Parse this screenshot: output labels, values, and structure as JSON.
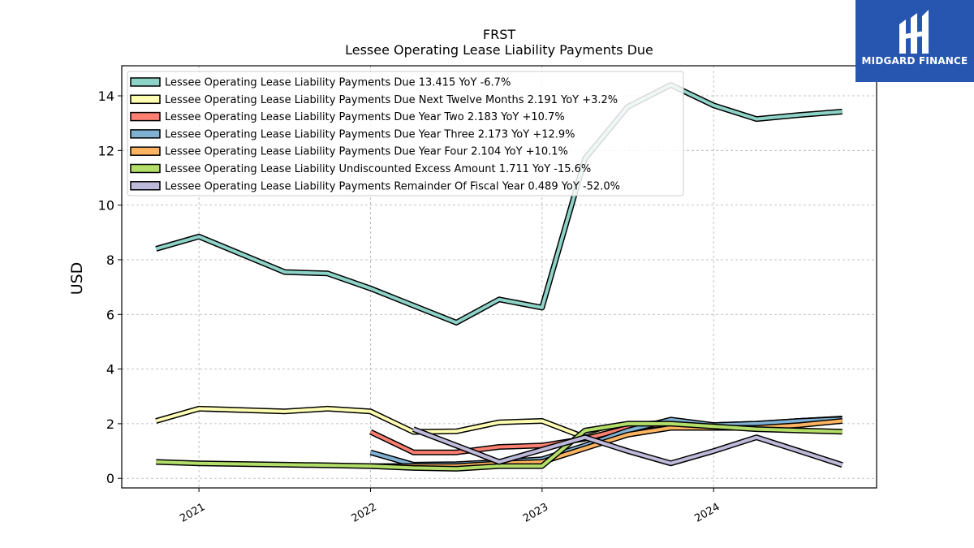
{
  "logo": {
    "text": "MIDGARD FINANCE",
    "color": "#2756b0"
  },
  "chart_data": {
    "type": "line",
    "title": "FRST",
    "subtitle": "Lessee Operating Lease Liability Payments Due",
    "xlabel": "",
    "ylabel": "USD",
    "ylim": [
      -0.35,
      15.1
    ],
    "xlim": [
      2020.55,
      2024.95
    ],
    "yticks": [
      0,
      2,
      4,
      6,
      8,
      10,
      12,
      14
    ],
    "xticks": [
      2021,
      2022,
      2023,
      2024
    ],
    "xtick_labels": [
      "2021",
      "2022",
      "2023",
      "2024"
    ],
    "grid": true,
    "legend_position": "top-left",
    "series": [
      {
        "name": "Lessee Operating Lease Liability Payments Due",
        "legend": "Lessee Operating Lease Liability Payments Due  13.415 YoY -6.7%",
        "color": "#8dd3c7",
        "x": [
          2020.75,
          2021.0,
          2021.5,
          2021.75,
          2022.0,
          2022.5,
          2022.75,
          2023.0,
          2023.25,
          2023.5,
          2023.75,
          2024.0,
          2024.25,
          2024.5,
          2024.75
        ],
        "y": [
          8.4,
          8.85,
          7.55,
          7.5,
          6.95,
          5.7,
          6.55,
          6.25,
          11.7,
          13.6,
          14.4,
          13.65,
          13.15,
          13.3,
          13.42
        ]
      },
      {
        "name": "Lessee Operating Lease Liability Payments Due Next Twelve Months",
        "legend": "Lessee Operating Lease Liability Payments Due Next Twelve Months  2.191 YoY +3.2%",
        "color": "#ffffb3",
        "x": [
          2020.75,
          2021.0,
          2021.5,
          2021.75,
          2022.0,
          2022.25,
          2022.5,
          2022.75,
          2023.0,
          2023.25,
          2023.5,
          2023.75,
          2024.0,
          2024.25,
          2024.5,
          2024.75
        ],
        "y": [
          2.1,
          2.55,
          2.45,
          2.55,
          2.45,
          1.7,
          1.72,
          2.05,
          2.1,
          1.5,
          1.95,
          2.05,
          1.95,
          1.95,
          2.1,
          2.19
        ]
      },
      {
        "name": "Lessee Operating Lease Liability Payments Due Year Two",
        "legend": "Lessee Operating Lease Liability Payments Due Year Two  2.183 YoY +10.7%",
        "color": "#fb8072",
        "x": [
          2022.0,
          2022.25,
          2022.5,
          2022.75,
          2023.0,
          2023.25,
          2023.5,
          2023.75,
          2024.0,
          2024.25,
          2024.5,
          2024.75
        ],
        "y": [
          1.7,
          0.95,
          0.95,
          1.15,
          1.2,
          1.45,
          1.85,
          2.0,
          1.95,
          2.0,
          2.1,
          2.18
        ]
      },
      {
        "name": "Lessee Operating Lease Liability Payments Due Year Three",
        "legend": "Lessee Operating Lease Liability Payments Due Year Three  2.173 YoY +12.9%",
        "color": "#80b1d3",
        "x": [
          2022.0,
          2022.25,
          2022.5,
          2022.75,
          2023.0,
          2023.25,
          2023.5,
          2023.75,
          2024.0,
          2024.25,
          2024.5,
          2024.75
        ],
        "y": [
          0.95,
          0.5,
          0.52,
          0.6,
          0.7,
          1.2,
          1.75,
          2.15,
          1.95,
          2.0,
          2.1,
          2.17
        ]
      },
      {
        "name": "Lessee Operating Lease Liability Payments Due Year Four",
        "legend": "Lessee Operating Lease Liability Payments Due Year Four  2.104 YoY +10.1%",
        "color": "#fdb462",
        "x": [
          2022.0,
          2022.25,
          2022.5,
          2022.75,
          2023.0,
          2023.25,
          2023.5,
          2023.75,
          2024.0,
          2024.25,
          2024.5,
          2024.75
        ],
        "y": [
          0.45,
          0.45,
          0.45,
          0.55,
          0.6,
          1.1,
          1.6,
          1.85,
          1.85,
          1.85,
          1.95,
          2.1
        ]
      },
      {
        "name": "Lessee Operating Lease Liability Undiscounted Excess Amount",
        "legend": "Lessee Operating Lease Liability Undiscounted Excess Amount  1.711 YoY -15.6%",
        "color": "#b3de69",
        "x": [
          2020.75,
          2021.0,
          2021.5,
          2021.75,
          2022.0,
          2022.25,
          2022.5,
          2022.75,
          2023.0,
          2023.25,
          2023.5,
          2023.75,
          2024.0,
          2024.25,
          2024.5,
          2024.75
        ],
        "y": [
          0.6,
          0.55,
          0.5,
          0.48,
          0.45,
          0.38,
          0.35,
          0.45,
          0.45,
          1.75,
          2.0,
          2.0,
          1.9,
          1.8,
          1.75,
          1.71
        ]
      },
      {
        "name": "Lessee Operating Lease Liability Payments Remainder Of Fiscal Year",
        "legend": "Lessee Operating Lease Liability Payments Remainder Of Fiscal Year  0.489 YoY -52.0%",
        "color": "#bebada",
        "x": [
          2022.25,
          2022.5,
          2022.75,
          2023.0,
          2023.25,
          2023.5,
          2023.75,
          2024.0,
          2024.25,
          2024.5,
          2024.75
        ],
        "y": [
          1.8,
          1.2,
          0.6,
          1.05,
          1.5,
          1.0,
          0.55,
          1.0,
          1.5,
          1.0,
          0.49
        ]
      }
    ]
  }
}
